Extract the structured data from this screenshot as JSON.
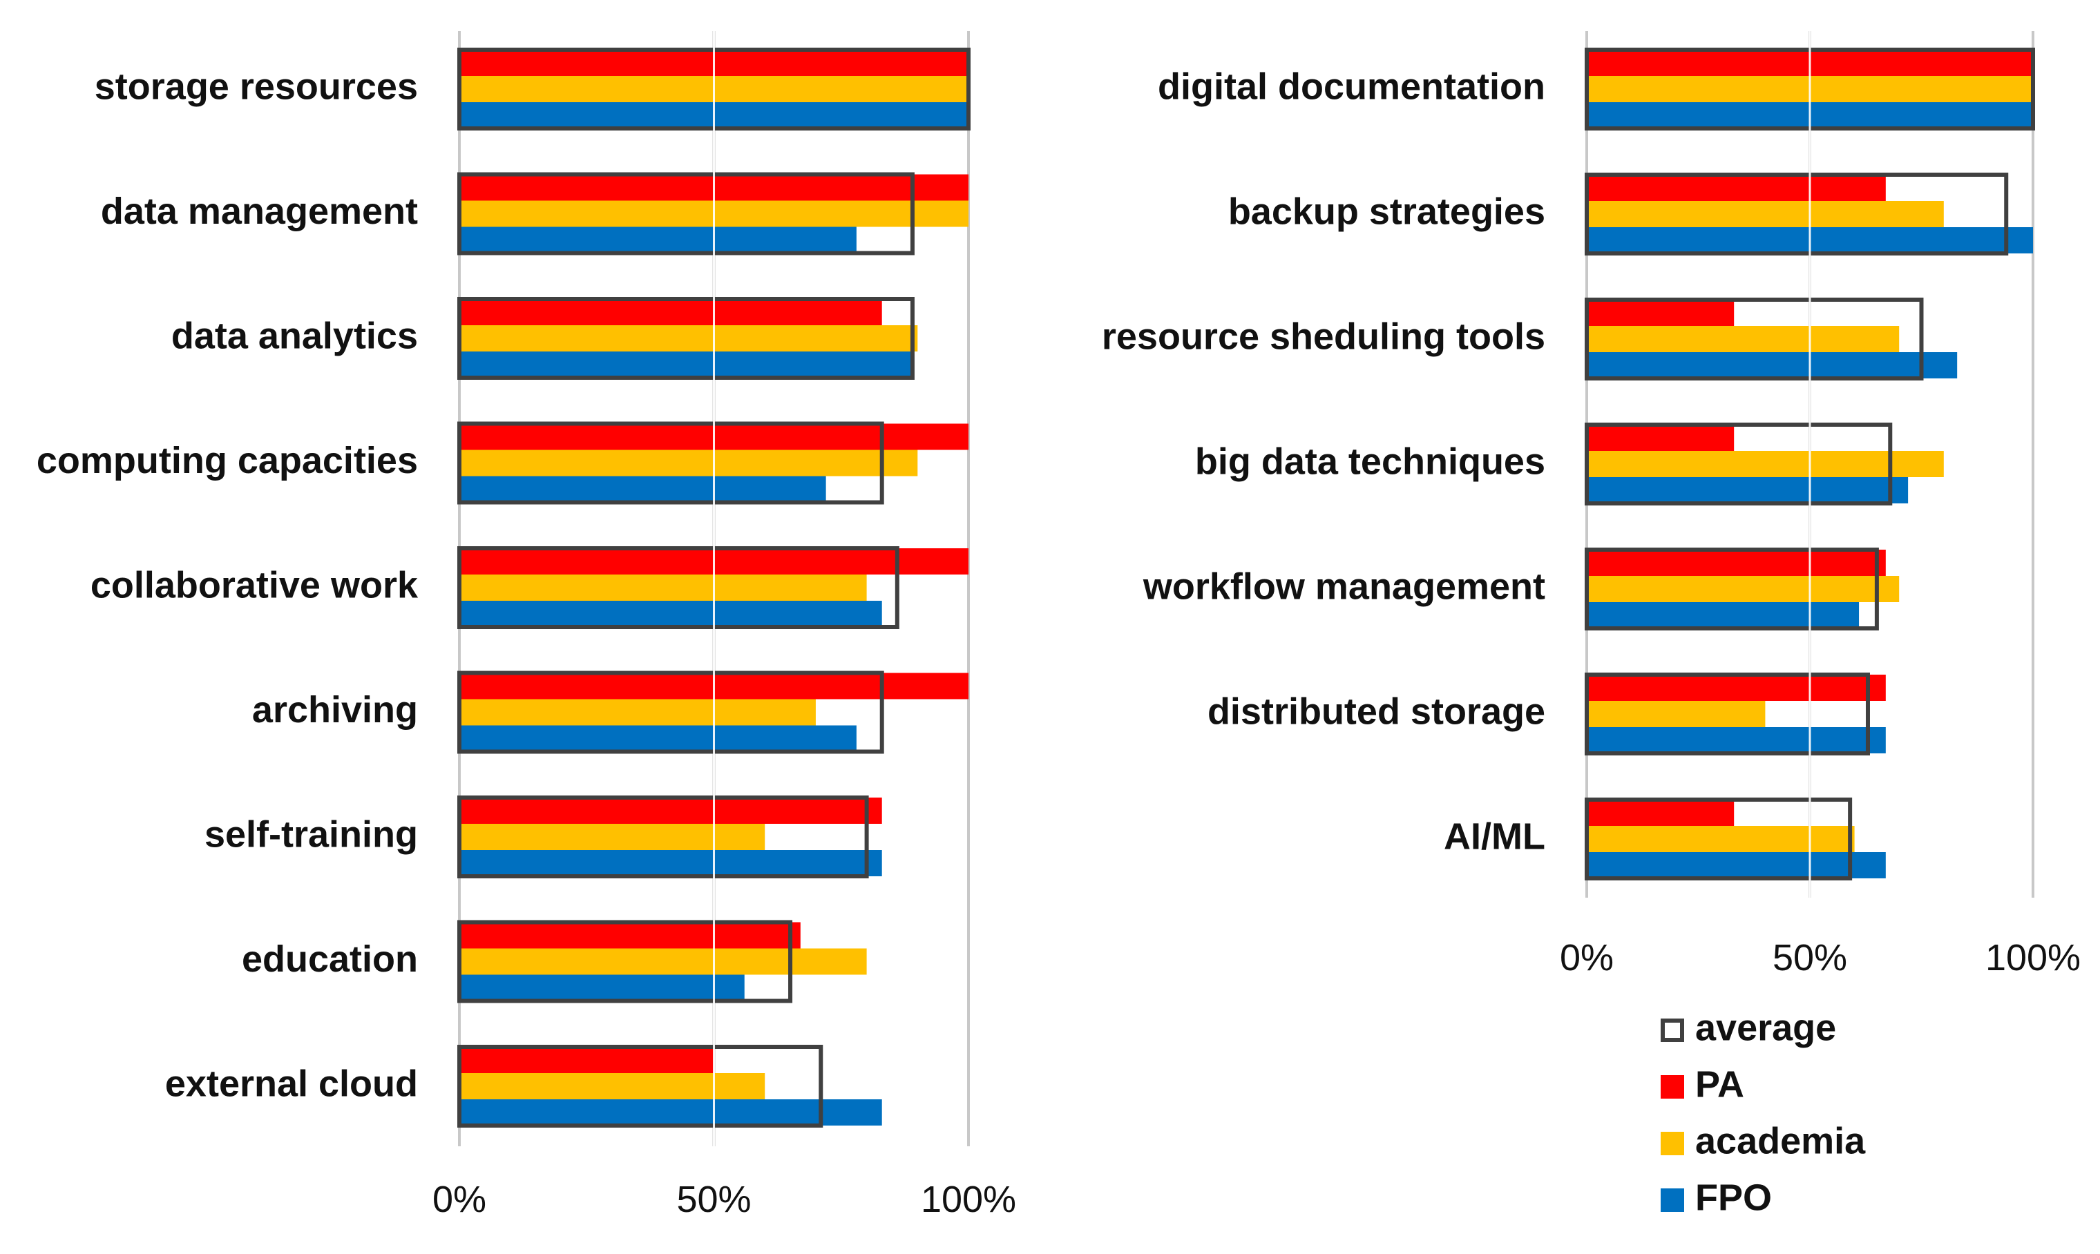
{
  "chart_data": [
    {
      "type": "bar",
      "orientation": "horizontal",
      "title": "",
      "xlabel": "",
      "ylabel": "",
      "xlim": [
        0,
        100
      ],
      "grid": true,
      "categories": [
        "storage resources",
        "data management",
        "data analytics",
        "computing capacities",
        "collaborative work",
        "archiving",
        "self-training",
        "education",
        "external cloud"
      ],
      "series": [
        {
          "name": "average",
          "values": [
            100,
            89,
            89,
            83,
            86,
            83,
            80,
            65,
            71
          ]
        },
        {
          "name": "PA",
          "values": [
            100,
            100,
            83,
            100,
            100,
            100,
            83,
            67,
            50
          ]
        },
        {
          "name": "academia",
          "values": [
            100,
            100,
            90,
            90,
            80,
            70,
            60,
            80,
            60
          ]
        },
        {
          "name": "FPO",
          "values": [
            100,
            78,
            89,
            72,
            83,
            78,
            83,
            56,
            83
          ]
        }
      ],
      "x_ticks": [
        "0%",
        "50%",
        "100%"
      ]
    },
    {
      "type": "bar",
      "orientation": "horizontal",
      "title": "",
      "xlabel": "",
      "ylabel": "",
      "xlim": [
        0,
        100
      ],
      "grid": true,
      "categories": [
        "digital documentation",
        "backup strategies",
        "resource sheduling tools",
        "big data techniques",
        "workflow management",
        "distributed storage",
        "AI/ML"
      ],
      "series": [
        {
          "name": "average",
          "values": [
            100,
            94,
            75,
            68,
            65,
            63,
            59
          ]
        },
        {
          "name": "PA",
          "values": [
            100,
            67,
            33,
            33,
            67,
            67,
            33
          ]
        },
        {
          "name": "academia",
          "values": [
            100,
            80,
            70,
            80,
            70,
            40,
            60
          ]
        },
        {
          "name": "FPO",
          "values": [
            100,
            100,
            83,
            72,
            61,
            67,
            67
          ]
        }
      ],
      "x_ticks": [
        "0%",
        "50%",
        "100%"
      ]
    }
  ],
  "legend": {
    "placement": "bottom-right",
    "items": [
      {
        "name": "average",
        "color": "#404040",
        "style": "outline"
      },
      {
        "name": "PA",
        "color": "#ff0000",
        "style": "fill"
      },
      {
        "name": "academia",
        "color": "#ffc000",
        "style": "fill"
      },
      {
        "name": "FPO",
        "color": "#0070c0",
        "style": "fill"
      }
    ]
  },
  "colors": {
    "average": "#404040",
    "PA": "#ff0000",
    "academia": "#ffc000",
    "FPO": "#0070c0",
    "gridline": "#c8c8c8",
    "axis": "#bfbfbf"
  }
}
